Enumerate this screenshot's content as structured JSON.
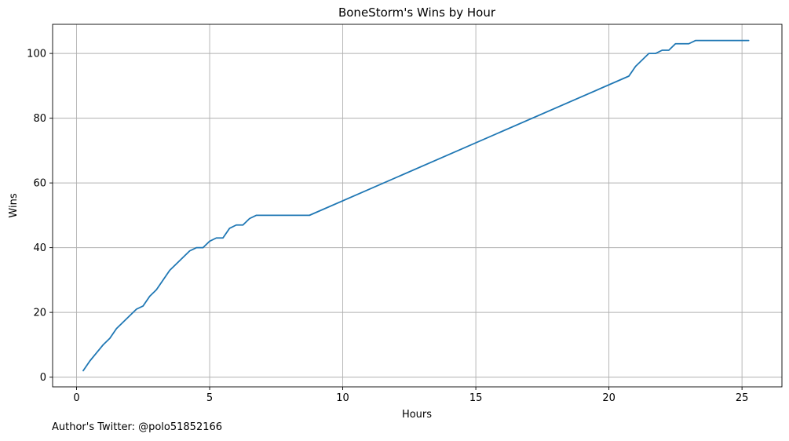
{
  "chart_data": {
    "type": "line",
    "title": "BoneStorm's Wins by Hour",
    "xlabel": "Hours",
    "ylabel": "Wins",
    "xlim": [
      -0.9,
      26.5
    ],
    "ylim": [
      -3,
      109
    ],
    "xticks": [
      0,
      5,
      10,
      15,
      20,
      25
    ],
    "yticks": [
      0,
      20,
      40,
      60,
      80,
      100
    ],
    "grid": true,
    "line_color": "#1f77b4",
    "series": [
      {
        "x": [
          0.25,
          0.5,
          0.75,
          1.0,
          1.25,
          1.5,
          1.75,
          2.0,
          2.25,
          2.5,
          2.75,
          3.0,
          3.25,
          3.5,
          3.75,
          4.0,
          4.25,
          4.5,
          4.75,
          5.0,
          5.25,
          5.5,
          5.75,
          6.0,
          6.25,
          6.5,
          6.75,
          7.0,
          7.5,
          8.0,
          8.5,
          8.75,
          20.75,
          21.0,
          21.25,
          21.5,
          21.75,
          22.0,
          22.25,
          22.5,
          22.75,
          23.0,
          23.25,
          23.5,
          24.0,
          24.5,
          25.0,
          25.25
        ],
        "y": [
          2,
          5,
          7.5,
          10,
          12,
          15,
          17,
          19,
          21,
          22,
          25,
          27,
          30,
          33,
          35,
          37,
          39,
          40,
          40,
          42,
          43,
          43,
          46,
          47,
          47,
          49,
          50,
          50,
          50,
          50,
          50,
          50,
          93,
          96,
          98,
          100,
          100,
          101,
          101,
          103,
          103,
          103,
          104,
          104,
          104,
          104,
          104,
          104
        ]
      }
    ]
  },
  "footer": {
    "note": "Author's Twitter: @polo51852166"
  }
}
